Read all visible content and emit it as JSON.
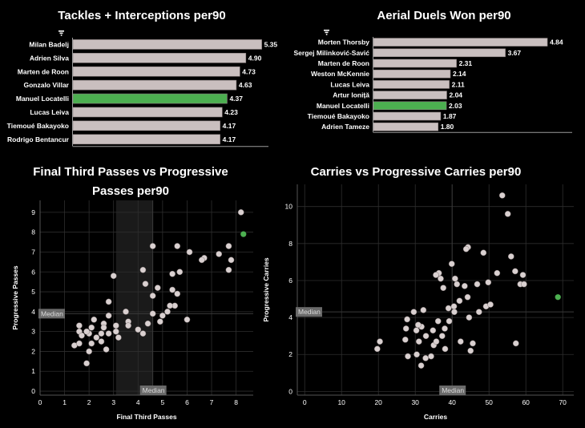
{
  "colors": {
    "bar": "#c9bfbf",
    "highlight": "#4caf50",
    "point": "#d9d0d0",
    "median_band": "#1a1a1a",
    "grid": "#2e2e2e",
    "median_box": "#6a6a6a"
  },
  "icons": [
    "filter-icon",
    "filter-icon"
  ],
  "chart_data": [
    {
      "type": "bar",
      "orientation": "horizontal",
      "title": "Tackles + Interceptions per90",
      "categories": [
        "Milan Badelj",
        "Adrien Silva",
        "Marten de Roon",
        "Gonzalo Villar",
        "Manuel Locatelli",
        "Lucas Leiva",
        "Tiemoué Bakayoko",
        "Rodrigo Bentancur"
      ],
      "values": [
        5.35,
        4.9,
        4.73,
        4.63,
        4.37,
        4.23,
        4.17,
        4.17
      ],
      "value_labels": [
        "5.35",
        "4.90",
        "4.73",
        "4.63",
        "4.37",
        "4.23",
        "4.17",
        "4.17"
      ],
      "highlight": "Manuel Locatelli",
      "xlim": [
        0,
        5.45
      ]
    },
    {
      "type": "bar",
      "orientation": "horizontal",
      "title": "Aerial Duels Won per90",
      "categories": [
        "Morten Thorsby",
        "Sergej Milinković-Savić",
        "Marten de Roon",
        "Weston McKennie",
        "Lucas Leiva",
        "Artur Ioniță",
        "Manuel Locatelli",
        "Tiemoué Bakayoko",
        "Adrien Tameze"
      ],
      "values": [
        4.84,
        3.67,
        2.31,
        2.14,
        2.11,
        2.04,
        2.03,
        1.87,
        1.8
      ],
      "value_labels": [
        "4.84",
        "3.67",
        "2.31",
        "2.14",
        "2.11",
        "2.04",
        "2.03",
        "1.87",
        "1.80"
      ],
      "highlight": "Manuel Locatelli",
      "xlim": [
        0,
        4.95
      ]
    },
    {
      "type": "scatter",
      "title": "Final Third Passes vs Progressive Passes per90",
      "title_lines": [
        "Final Third Passes vs Progressive",
        "Passes per90"
      ],
      "xlabel": "Final Third Passes",
      "ylabel": "Progressive Passes",
      "xlim": [
        0,
        8.7
      ],
      "ylim": [
        -0.2,
        9.6
      ],
      "xticks": [
        0,
        1,
        2,
        3,
        4,
        5,
        6,
        7,
        8
      ],
      "yticks": [
        0,
        1,
        2,
        3,
        4,
        5,
        6,
        7,
        8,
        9
      ],
      "median_x": 4.6,
      "median_y": 3.9,
      "median_band_x": [
        3.1,
        4.6
      ],
      "median_label": "Median",
      "highlight_point": [
        8.3,
        7.9
      ],
      "points": [
        [
          8.2,
          9.0
        ],
        [
          7.7,
          7.3
        ],
        [
          7.3,
          6.9
        ],
        [
          7.8,
          6.6
        ],
        [
          7.7,
          6.1
        ],
        [
          6.7,
          6.7
        ],
        [
          6.6,
          6.6
        ],
        [
          6.1,
          7.0
        ],
        [
          5.6,
          7.3
        ],
        [
          5.7,
          6.0
        ],
        [
          4.6,
          7.3
        ],
        [
          4.2,
          6.1
        ],
        [
          4.3,
          5.4
        ],
        [
          4.8,
          5.2
        ],
        [
          5.4,
          5.9
        ],
        [
          5.4,
          5.1
        ],
        [
          5.6,
          4.9
        ],
        [
          5.5,
          4.3
        ],
        [
          4.6,
          4.8
        ],
        [
          4.6,
          3.9
        ],
        [
          5.0,
          3.8
        ],
        [
          5.2,
          4.0
        ],
        [
          5.3,
          4.3
        ],
        [
          6.0,
          3.6
        ],
        [
          4.9,
          3.5
        ],
        [
          4.4,
          3.4
        ],
        [
          4.0,
          3.1
        ],
        [
          4.2,
          2.9
        ],
        [
          3.5,
          4.0
        ],
        [
          3.6,
          3.5
        ],
        [
          3.6,
          3.3
        ],
        [
          3.0,
          5.8
        ],
        [
          2.8,
          4.5
        ],
        [
          2.8,
          3.8
        ],
        [
          2.6,
          3.4
        ],
        [
          2.6,
          3.2
        ],
        [
          2.5,
          2.9
        ],
        [
          2.5,
          2.5
        ],
        [
          3.1,
          3.3
        ],
        [
          3.2,
          2.7
        ],
        [
          3.1,
          3.0
        ],
        [
          2.2,
          3.6
        ],
        [
          2.1,
          3.2
        ],
        [
          2.0,
          2.9
        ],
        [
          2.3,
          2.7
        ],
        [
          1.9,
          3.0
        ],
        [
          1.6,
          3.3
        ],
        [
          1.6,
          3.0
        ],
        [
          1.7,
          2.8
        ],
        [
          1.4,
          2.3
        ],
        [
          1.6,
          2.4
        ],
        [
          2.0,
          2.0
        ],
        [
          2.8,
          2.9
        ],
        [
          2.1,
          2.4
        ],
        [
          2.7,
          2.1
        ],
        [
          1.9,
          1.4
        ]
      ]
    },
    {
      "type": "scatter",
      "title": "Carries vs Progressive Carries per90",
      "xlabel": "Carries",
      "ylabel": "Progressive Carries",
      "xlim": [
        -2,
        73
      ],
      "ylim": [
        -0.2,
        11.2
      ],
      "xticks": [
        0,
        10,
        20,
        30,
        40,
        50,
        60,
        70
      ],
      "yticks": [
        0,
        2,
        4,
        6,
        8,
        10
      ],
      "median_x": 40,
      "median_y": 4.3,
      "median_label": "Median",
      "highlight_point": [
        68.7,
        5.1
      ],
      "points": [
        [
          53.6,
          10.6
        ],
        [
          55.1,
          9.6
        ],
        [
          56.0,
          7.3
        ],
        [
          57.1,
          6.5
        ],
        [
          58.5,
          5.8
        ],
        [
          59.5,
          5.8
        ],
        [
          59.2,
          6.3
        ],
        [
          57.3,
          2.6
        ],
        [
          52.2,
          6.4
        ],
        [
          49.8,
          5.9
        ],
        [
          48.5,
          7.5
        ],
        [
          46.8,
          5.8
        ],
        [
          44.3,
          7.8
        ],
        [
          43.8,
          7.7
        ],
        [
          43.4,
          5.7
        ],
        [
          41.3,
          5.8
        ],
        [
          40.8,
          6.1
        ],
        [
          39.9,
          6.9
        ],
        [
          36.4,
          6.4
        ],
        [
          35.6,
          6.3
        ],
        [
          36.9,
          6.1
        ],
        [
          37.6,
          5.6
        ],
        [
          44.2,
          5.1
        ],
        [
          49.2,
          4.6
        ],
        [
          50.4,
          4.7
        ],
        [
          47.3,
          4.3
        ],
        [
          44.6,
          4.0
        ],
        [
          40.6,
          4.3
        ],
        [
          39.0,
          4.5
        ],
        [
          40.5,
          4.6
        ],
        [
          42.0,
          4.9
        ],
        [
          39.2,
          3.8
        ],
        [
          38.0,
          3.4
        ],
        [
          36.2,
          3.8
        ],
        [
          34.8,
          3.3
        ],
        [
          32.2,
          4.4
        ],
        [
          31.7,
          3.5
        ],
        [
          30.8,
          3.6
        ],
        [
          30.3,
          3.3
        ],
        [
          29.6,
          4.3
        ],
        [
          32.9,
          3.0
        ],
        [
          31.0,
          2.7
        ],
        [
          32.8,
          1.8
        ],
        [
          35.0,
          2.5
        ],
        [
          34.3,
          1.9
        ],
        [
          35.7,
          2.7
        ],
        [
          37.3,
          3.0
        ],
        [
          38.1,
          2.3
        ],
        [
          27.8,
          3.9
        ],
        [
          27.5,
          3.4
        ],
        [
          27.3,
          2.8
        ],
        [
          28.0,
          1.9
        ],
        [
          30.4,
          2.0
        ],
        [
          31.6,
          1.4
        ],
        [
          20.4,
          2.7
        ],
        [
          19.7,
          2.3
        ],
        [
          45.6,
          2.6
        ],
        [
          45.0,
          2.2
        ],
        [
          42.3,
          2.7
        ]
      ]
    }
  ]
}
